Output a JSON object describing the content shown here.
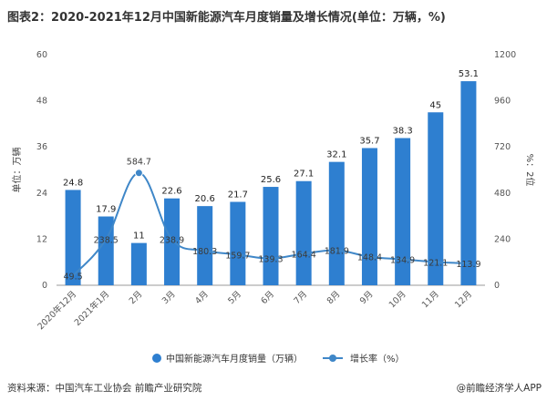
{
  "title": "图表2：2020-2021年12月中国新能源汽车月度销量及增长情况(单位：万辆，%)",
  "footer": {
    "source": "资料来源：中国汽车工业协会 前瞻产业研究院",
    "brand": "@前瞻经济学人APP"
  },
  "colors": {
    "bar": "#2e7fd0",
    "line": "#3f87c8",
    "marker": "#3f87c8"
  },
  "chart_data": {
    "type": "bar",
    "categories": [
      "2020年12月",
      "2021年1月",
      "2月",
      "3月",
      "4月",
      "5月",
      "6月",
      "7月",
      "8月",
      "9月",
      "10月",
      "11月",
      "12月"
    ],
    "series": [
      {
        "name": "中国新能源汽车月度销量（万辆）",
        "type": "bar",
        "axis": "left",
        "values": [
          24.8,
          17.9,
          11,
          22.6,
          20.6,
          21.7,
          25.6,
          27.1,
          32.1,
          35.7,
          38.3,
          45,
          53.1
        ]
      },
      {
        "name": "增长率（%）",
        "type": "line",
        "axis": "right",
        "values": [
          49.5,
          238.5,
          584.7,
          238.9,
          180.3,
          159.7,
          139.3,
          164.4,
          181.9,
          148.4,
          134.9,
          121.1,
          113.9
        ]
      }
    ],
    "ylabel": "单位：万辆",
    "y2label": "%：2位",
    "ylim": [
      0,
      60
    ],
    "y2lim": [
      0,
      1200
    ],
    "yticks": [
      0,
      12,
      24,
      36,
      48,
      60
    ],
    "y2ticks": [
      0,
      240,
      480,
      720,
      960,
      1200
    ],
    "grid": false,
    "legend": "bottom",
    "highlight_marker_index": 2
  }
}
